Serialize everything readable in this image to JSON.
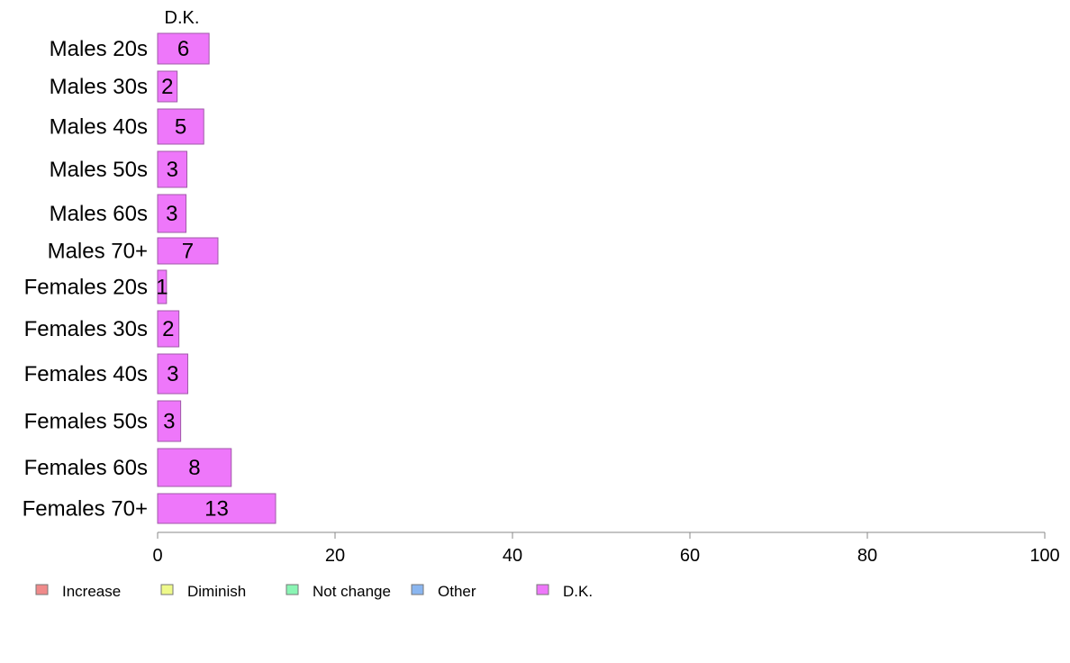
{
  "chart_data": {
    "type": "bar",
    "orientation": "horizontal",
    "stacked": true,
    "column_header": "D.K.",
    "categories": [
      "Males 20s",
      "Males 30s",
      "Males 40s",
      "Males 50s",
      "Males 60s",
      "Males 70+",
      "Females 20s",
      "Females 30s",
      "Females 40s",
      "Females 50s",
      "Females 60s",
      "Females 70+"
    ],
    "series": [
      {
        "name": "Increase",
        "color": "#f08a8a",
        "values": [
          0,
          0,
          0,
          0,
          0,
          0,
          0,
          0,
          0,
          0,
          0,
          0
        ]
      },
      {
        "name": "Diminish",
        "color": "#eef98a",
        "values": [
          0,
          0,
          0,
          0,
          0,
          0,
          0,
          0,
          0,
          0,
          0,
          0
        ]
      },
      {
        "name": "Not change",
        "color": "#8af5b4",
        "values": [
          0,
          0,
          0,
          0,
          0,
          0,
          0,
          0,
          0,
          0,
          0,
          0
        ]
      },
      {
        "name": "Other",
        "color": "#8ab6f0",
        "values": [
          0,
          0,
          0,
          0,
          0,
          0,
          0,
          0,
          0,
          0,
          0,
          0
        ]
      },
      {
        "name": "D.K.",
        "color": "#ee77fa",
        "values": [
          5.8,
          2.2,
          5.2,
          3.3,
          3.2,
          6.8,
          1.0,
          2.4,
          3.4,
          2.6,
          8.3,
          13.3
        ]
      }
    ],
    "data_labels": [
      "6",
      "2",
      "5",
      "3",
      "3",
      "7",
      "1",
      "2",
      "3",
      "3",
      "8",
      "13"
    ],
    "xlim": [
      0,
      100
    ],
    "x_ticks": [
      0,
      20,
      40,
      60,
      80,
      100
    ],
    "grid": false,
    "legend_position": "bottom"
  }
}
